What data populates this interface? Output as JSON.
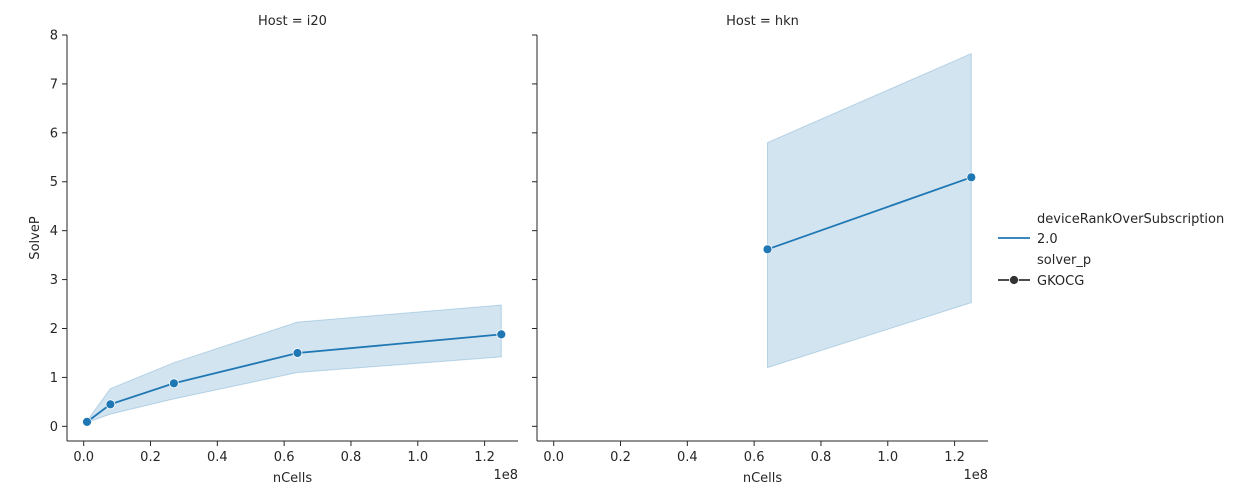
{
  "chart_data": {
    "type": "line",
    "x_label": "nCells",
    "y_label": "SolveP",
    "x_offset_text": "1e8",
    "xlim": [
      -0.05,
      1.3
    ],
    "ylim": [
      -0.3,
      8
    ],
    "x_ticks": [
      0.0,
      0.2,
      0.4,
      0.6,
      0.8,
      1.0,
      1.2
    ],
    "x_tick_labels": [
      "0.0",
      "0.2",
      "0.4",
      "0.6",
      "0.8",
      "1.0",
      "1.2"
    ],
    "y_ticks": [
      0,
      1,
      2,
      3,
      4,
      5,
      6,
      7,
      8
    ],
    "y_tick_labels": [
      "0",
      "1",
      "2",
      "3",
      "4",
      "5",
      "6",
      "7",
      "8"
    ],
    "color": "#1f77b4",
    "band_color": "#1f77b4",
    "panels": [
      {
        "title": "Host = i20",
        "x": [
          0.01,
          0.08,
          0.27,
          0.64,
          1.25
        ],
        "y": [
          0.09,
          0.45,
          0.88,
          1.5,
          1.88
        ],
        "ci_low": [
          0.08,
          0.25,
          0.56,
          1.1,
          1.42
        ],
        "ci_high": [
          0.11,
          0.77,
          1.3,
          2.13,
          2.48
        ]
      },
      {
        "title": "Host = hkn",
        "x": [
          0.64,
          1.25
        ],
        "y": [
          3.62,
          5.09
        ],
        "ci_low": [
          1.2,
          2.53
        ],
        "ci_high": [
          5.8,
          7.62
        ]
      }
    ],
    "legend": {
      "placement": "right",
      "hue_title": "deviceRankOverSubscription",
      "hue_entries": [
        "2.0"
      ],
      "style_title": "solver_p",
      "style_entries": [
        "GKOCG"
      ]
    }
  }
}
